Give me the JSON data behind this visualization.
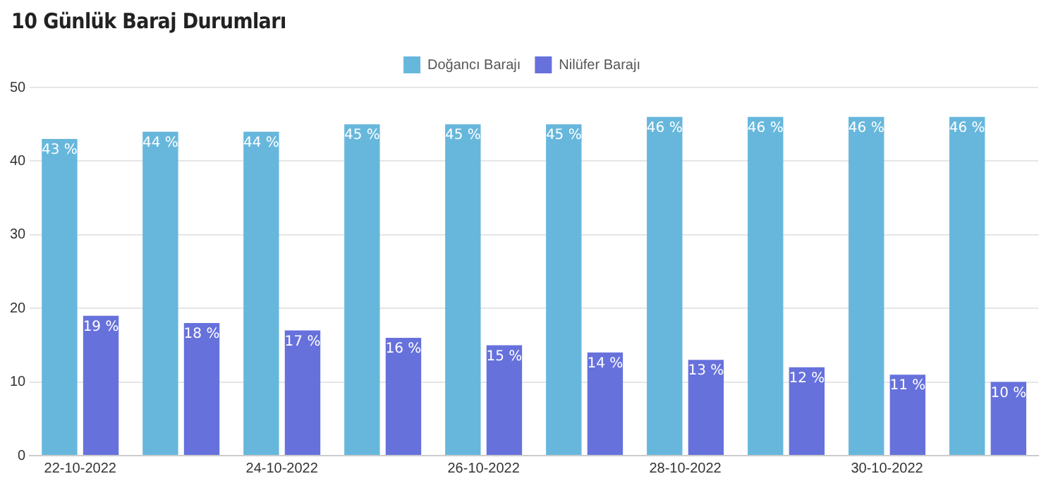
{
  "chart_data": {
    "type": "bar",
    "title": "10 Günlük Baraj Durumları",
    "categories": [
      "22-10-2022",
      null,
      "24-10-2022",
      null,
      "26-10-2022",
      null,
      "28-10-2022",
      null,
      "30-10-2022",
      null
    ],
    "series": [
      {
        "name": "Doğancı Barajı",
        "color": "#67b7dc",
        "values": [
          43,
          44,
          44,
          45,
          45,
          45,
          46,
          46,
          46,
          46
        ],
        "value_labels": [
          "43 %",
          "44 %",
          "44 %",
          "45 %",
          "45 %",
          "45 %",
          "46 %",
          "46 %",
          "46 %",
          "46 %"
        ]
      },
      {
        "name": "Nilüfer Barajı",
        "color": "#6771dc",
        "values": [
          19,
          18,
          17,
          16,
          15,
          14,
          13,
          12,
          11,
          10
        ],
        "value_labels": [
          "19 %",
          "18 %",
          "17 %",
          "16 %",
          "15 %",
          "14 %",
          "13 %",
          "12 %",
          "11 %",
          "10 %"
        ]
      }
    ],
    "ylim": [
      0,
      50
    ],
    "yticks": [
      0,
      10,
      20,
      30,
      40,
      50
    ],
    "grid": "y",
    "legend": "top"
  }
}
